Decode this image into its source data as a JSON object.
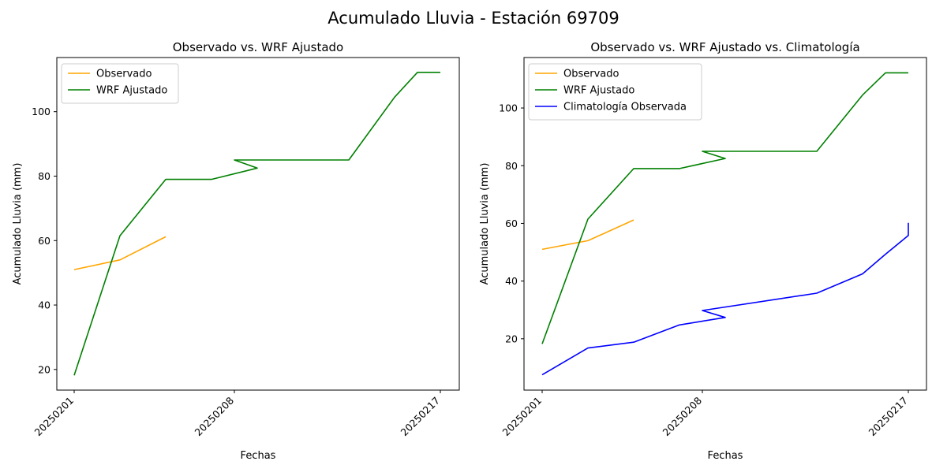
{
  "figure": {
    "title": "Acumulado Lluvia - Estación 69709"
  },
  "chart_data": [
    {
      "type": "line",
      "title": "Observado vs. WRF Ajustado",
      "xlabel": "Fechas",
      "ylabel": "Acumulado Lluvia (mm)",
      "x": [
        "20250201",
        "20250202",
        "20250203",
        "20250204",
        "20250205",
        "20250206",
        "20250207",
        "20250208",
        "20250209",
        "20250210",
        "20250211",
        "20250212",
        "20250213",
        "20250214",
        "20250215",
        "20250216",
        "20250217"
      ],
      "xtick_labels": [
        "20250201",
        "20250208",
        "20250217"
      ],
      "yticks": [
        20,
        40,
        60,
        80,
        100
      ],
      "ylim": [
        13.6,
        116.8
      ],
      "legend": "upper-left",
      "grid": false,
      "series": [
        {
          "name": "Observado",
          "color": "#ffa500",
          "points": [
            {
              "x": "20250201",
              "y": 51.0
            },
            {
              "x": "20250203",
              "y": 54.0
            },
            {
              "x": "20250205",
              "y": 61.2
            }
          ]
        },
        {
          "name": "WRF Ajustado",
          "color": "#008000",
          "points": [
            {
              "x": "20250201",
              "y": 18.2
            },
            {
              "x": "20250203",
              "y": 61.5
            },
            {
              "x": "20250205",
              "y": 79.0
            },
            {
              "x": "20250207",
              "y": 79.0
            },
            {
              "x": "20250209",
              "y": 82.5
            },
            {
              "x": "20250208",
              "y": 85.0
            },
            {
              "x": "20250213",
              "y": 85.0
            },
            {
              "x": "20250215",
              "y": 104.5
            },
            {
              "x": "20250216",
              "y": 112.2
            },
            {
              "x": "20250217",
              "y": 112.2
            }
          ]
        }
      ]
    },
    {
      "type": "line",
      "title": "Observado vs. WRF Ajustado vs. Climatología",
      "xlabel": "Fechas",
      "ylabel": "Acumulado Lluvia (mm)",
      "x": [
        "20250201",
        "20250202",
        "20250203",
        "20250204",
        "20250205",
        "20250206",
        "20250207",
        "20250208",
        "20250209",
        "20250210",
        "20250211",
        "20250212",
        "20250213",
        "20250214",
        "20250215",
        "20250216",
        "20250217"
      ],
      "xtick_labels": [
        "20250201",
        "20250208",
        "20250217"
      ],
      "yticks": [
        20,
        40,
        60,
        80,
        100
      ],
      "ylim": [
        2.2,
        117.5
      ],
      "legend": "upper-left",
      "grid": false,
      "series": [
        {
          "name": "Observado",
          "color": "#ffa500",
          "points": [
            {
              "x": "20250201",
              "y": 51.0
            },
            {
              "x": "20250203",
              "y": 54.0
            },
            {
              "x": "20250205",
              "y": 61.2
            }
          ]
        },
        {
          "name": "WRF Ajustado",
          "color": "#008000",
          "points": [
            {
              "x": "20250201",
              "y": 18.2
            },
            {
              "x": "20250203",
              "y": 61.5
            },
            {
              "x": "20250205",
              "y": 79.0
            },
            {
              "x": "20250207",
              "y": 79.0
            },
            {
              "x": "20250209",
              "y": 82.5
            },
            {
              "x": "20250208",
              "y": 85.0
            },
            {
              "x": "20250213",
              "y": 85.0
            },
            {
              "x": "20250215",
              "y": 104.5
            },
            {
              "x": "20250216",
              "y": 112.2
            },
            {
              "x": "20250217",
              "y": 112.2
            }
          ]
        },
        {
          "name": "Climatología Observada",
          "color": "#0000ff",
          "points": [
            {
              "x": "20250201",
              "y": 7.5
            },
            {
              "x": "20250203",
              "y": 16.8
            },
            {
              "x": "20250205",
              "y": 18.8
            },
            {
              "x": "20250207",
              "y": 24.8
            },
            {
              "x": "20250209",
              "y": 27.4
            },
            {
              "x": "20250208",
              "y": 29.8
            },
            {
              "x": "20250213",
              "y": 35.8
            },
            {
              "x": "20250215",
              "y": 42.5
            },
            {
              "x": "20250216",
              "y": 49.3
            },
            {
              "x": "20250217",
              "y": 55.8
            },
            {
              "x": "20250217",
              "y": 60.2
            }
          ]
        }
      ]
    }
  ]
}
